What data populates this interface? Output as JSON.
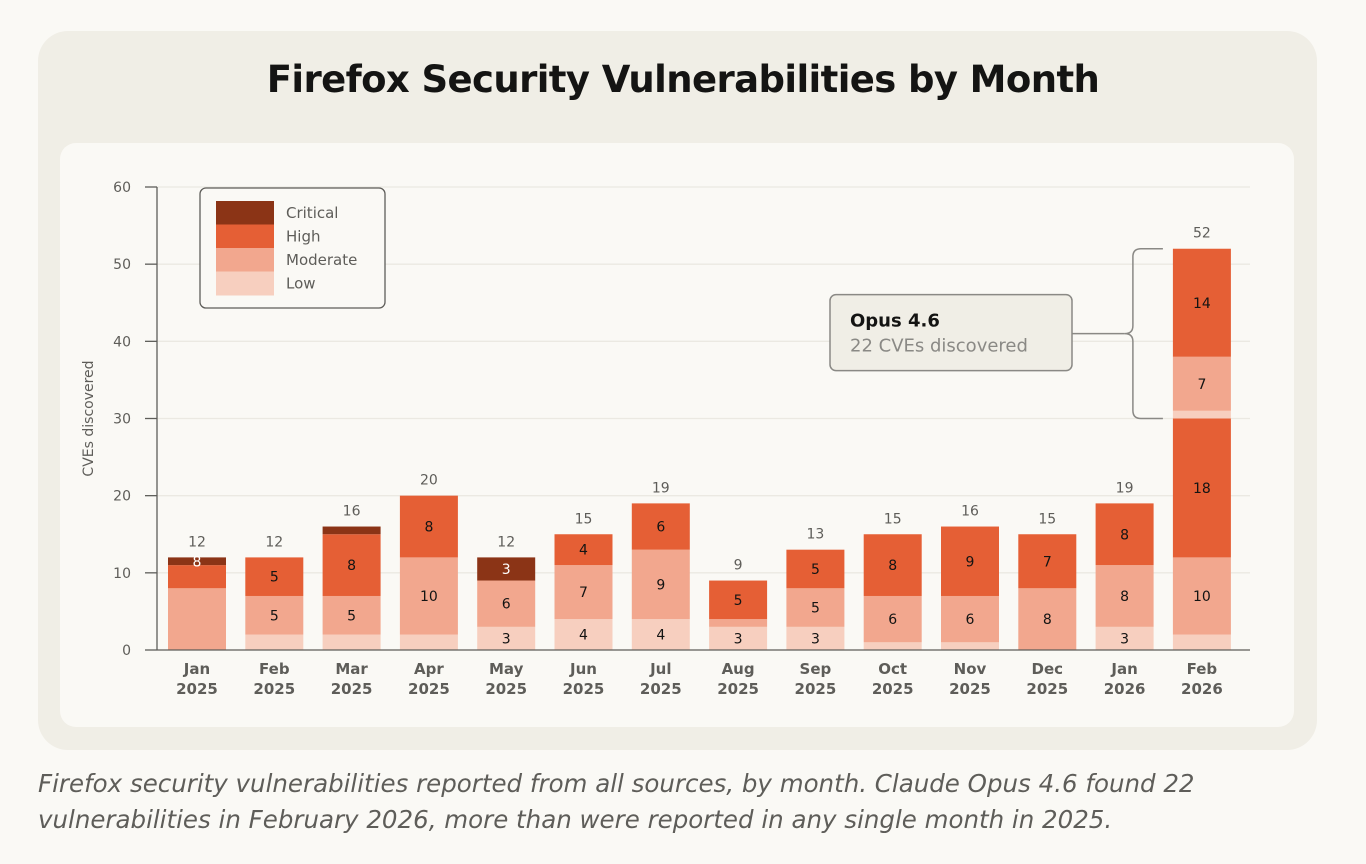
{
  "title": "Firefox Security Vulnerabilities by Month",
  "caption": "Firefox security vulnerabilities reported from all sources, by month. Claude Opus 4.6 found 22 vulnerabilities in February 2026, more than were reported in any single month in 2025.",
  "colors": {
    "critical": "#8b3416",
    "high": "#e55f35",
    "moderate": "#f2a78e",
    "low": "#f7cfbf",
    "axis": "#5e5d59",
    "grid": "#ebe9e2",
    "annotation_bg": "#f0eee6",
    "annotation_border": "#8a8985"
  },
  "annotation": {
    "title": "Opus 4.6",
    "subtitle": "22 CVEs discovered",
    "value": 22
  },
  "chart_data": {
    "type": "bar",
    "stacked": true,
    "categories": [
      [
        "Jan",
        "2025"
      ],
      [
        "Feb",
        "2025"
      ],
      [
        "Mar",
        "2025"
      ],
      [
        "Apr",
        "2025"
      ],
      [
        "May",
        "2025"
      ],
      [
        "Jun",
        "2025"
      ],
      [
        "Jul",
        "2025"
      ],
      [
        "Aug",
        "2025"
      ],
      [
        "Sep",
        "2025"
      ],
      [
        "Oct",
        "2025"
      ],
      [
        "Nov",
        "2025"
      ],
      [
        "Dec",
        "2025"
      ],
      [
        "Jan",
        "2026"
      ],
      [
        "Feb",
        "2026"
      ]
    ],
    "series": [
      {
        "name": "Low",
        "key": "low",
        "values": [
          0,
          2,
          2,
          2,
          3,
          4,
          4,
          3,
          3,
          1,
          1,
          0,
          3,
          2
        ]
      },
      {
        "name": "Moderate",
        "key": "moderate",
        "values": [
          8,
          5,
          5,
          10,
          6,
          7,
          9,
          1,
          5,
          6,
          6,
          8,
          8,
          10
        ]
      },
      {
        "name": "High",
        "key": "high",
        "values": [
          3,
          5,
          8,
          8,
          0,
          4,
          6,
          5,
          5,
          8,
          9,
          7,
          8,
          18
        ]
      },
      {
        "name": "Critical",
        "key": "critical",
        "values": [
          1,
          0,
          1,
          0,
          3,
          0,
          0,
          0,
          0,
          0,
          0,
          0,
          0,
          0
        ]
      },
      {
        "name": "Low",
        "key": "low",
        "values": [
          0,
          0,
          0,
          0,
          0,
          0,
          0,
          0,
          0,
          0,
          0,
          0,
          0,
          1
        ]
      },
      {
        "name": "Moderate",
        "key": "moderate",
        "values": [
          0,
          0,
          0,
          0,
          0,
          0,
          0,
          0,
          0,
          0,
          0,
          0,
          0,
          7
        ]
      },
      {
        "name": "High",
        "key": "high",
        "values": [
          0,
          0,
          0,
          0,
          0,
          0,
          0,
          0,
          0,
          0,
          0,
          0,
          0,
          14
        ]
      }
    ],
    "segment_labels": [
      [
        "",
        "",
        "8",
        "3",
        "",
        ""
      ],
      [
        "",
        "5",
        "5"
      ],
      [
        "",
        "5",
        "8",
        ""
      ],
      [
        "",
        "10",
        "8"
      ],
      [
        "3",
        "6",
        "3"
      ],
      [
        "4",
        "7",
        "4"
      ],
      [
        "4",
        "9",
        "6"
      ],
      [
        "3",
        "",
        "5"
      ],
      [
        "3",
        "5",
        "5"
      ],
      [
        "",
        "6",
        "8"
      ],
      [
        "",
        "6",
        "9"
      ],
      [
        "8",
        "7"
      ],
      [
        "3",
        "8",
        "8"
      ],
      [
        "",
        "10",
        "18",
        "",
        "7",
        "14"
      ]
    ],
    "totals": [
      12,
      12,
      16,
      20,
      12,
      15,
      19,
      9,
      13,
      15,
      16,
      15,
      19,
      52
    ],
    "legend": [
      "Critical",
      "High",
      "Moderate",
      "Low"
    ],
    "legend_position": "top-left",
    "ylabel": "CVEs discovered",
    "yticks": [
      0,
      10,
      20,
      30,
      40,
      50,
      60
    ],
    "ylim": [
      0,
      60
    ],
    "grid": true
  }
}
